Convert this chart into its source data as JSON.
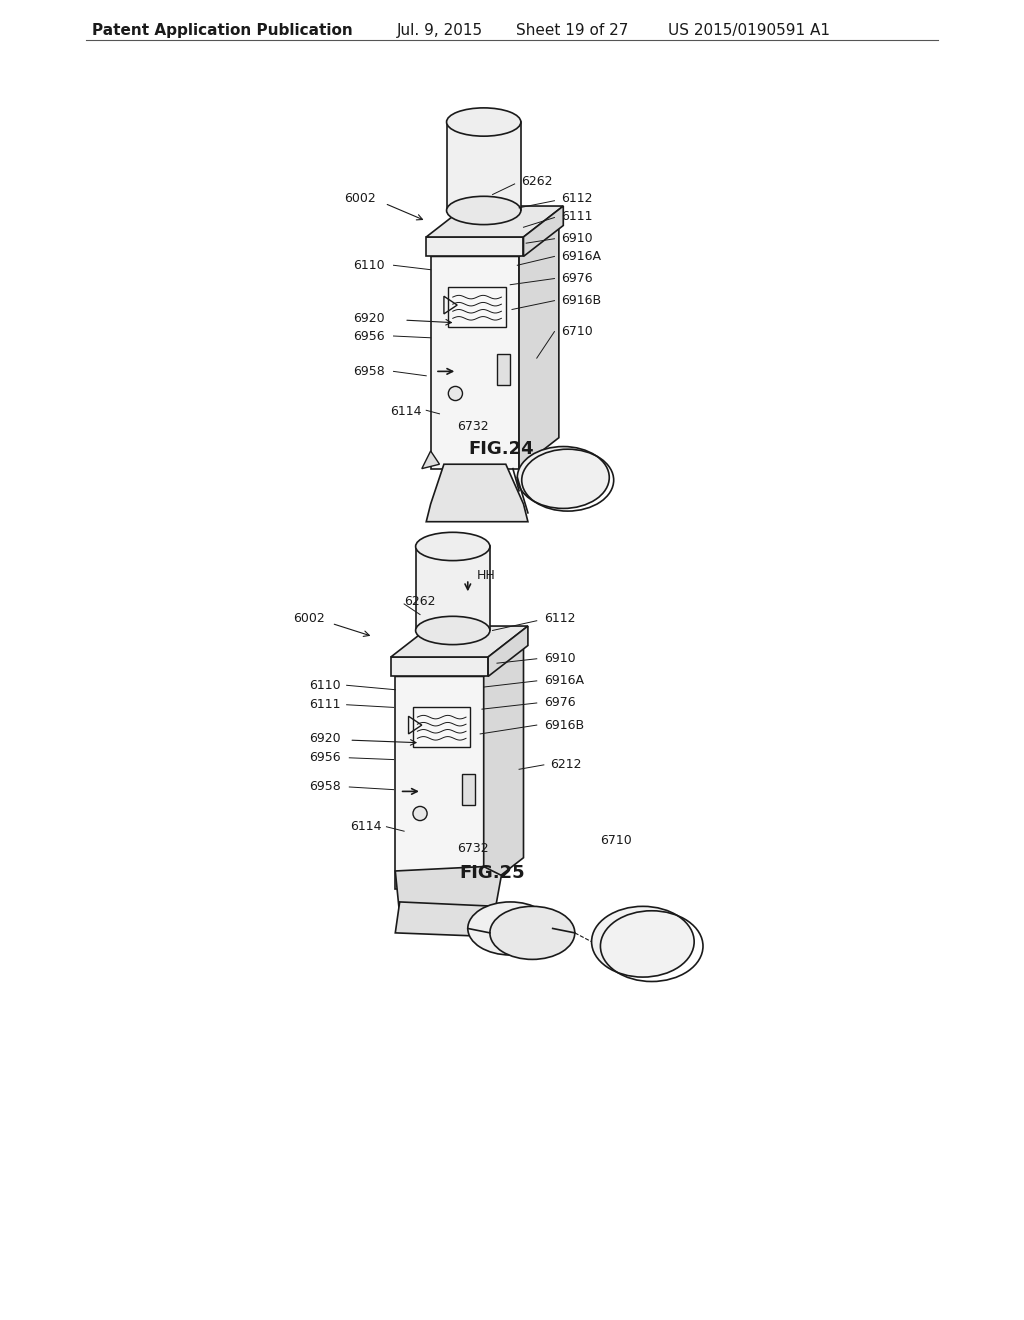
{
  "bg_color": "#ffffff",
  "header_text": "Patent Application Publication",
  "header_date": "Jul. 9, 2015",
  "header_sheet": "Sheet 19 of 27",
  "header_patent": "US 2015/0190591 A1",
  "fig24_title": "FIG.24",
  "fig25_title": "FIG.25",
  "line_color": "#1a1a1a",
  "text_color": "#1a1a1a",
  "font_size_header": 11,
  "font_size_labels": 9,
  "font_size_fig": 13
}
